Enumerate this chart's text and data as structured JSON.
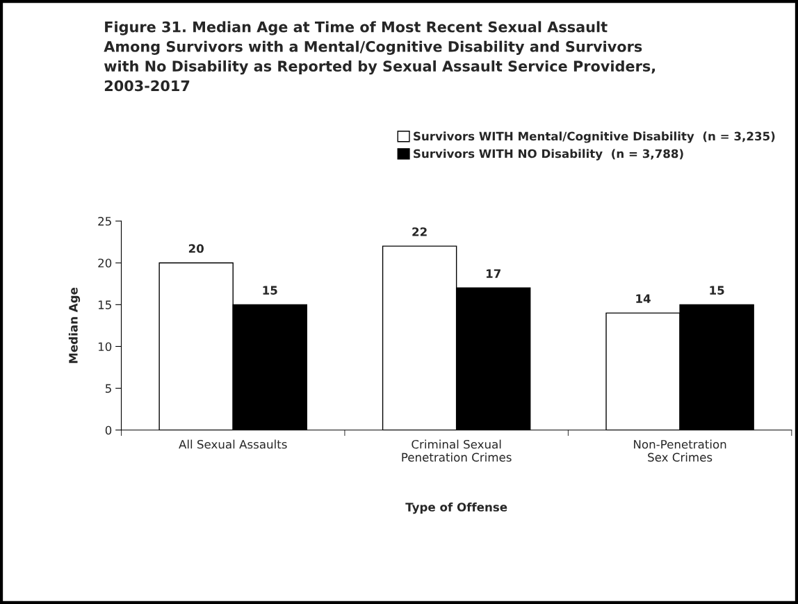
{
  "chart_data": {
    "type": "bar",
    "title": "Figure 31. Median Age at Time of Most Recent Sexual Assault\nAmong Survivors with a Mental/Cognitive Disability and Survivors\nwith No Disability as Reported by Sexual Assault Service Providers,\n2003-2017",
    "xlabel": "Type of Offense",
    "ylabel": "Median Age",
    "categories": [
      "All Sexual Assaults",
      "Criminal Sexual\nPenetration Crimes",
      "Non-Penetration\nSex Crimes"
    ],
    "series": [
      {
        "name": "Survivors WITH Mental/Cognitive Disability  (n = 3,235)",
        "color": "#ffffff",
        "values": [
          20,
          22,
          14
        ]
      },
      {
        "name": "Survivors WITH NO Disability  (n = 3,788)",
        "color": "#000000",
        "values": [
          15,
          17,
          15
        ]
      }
    ],
    "ylim": [
      0,
      25
    ],
    "yticks": [
      0,
      5,
      10,
      15,
      20,
      25
    ],
    "data_labels": true,
    "grid": false,
    "legend": "top right"
  }
}
